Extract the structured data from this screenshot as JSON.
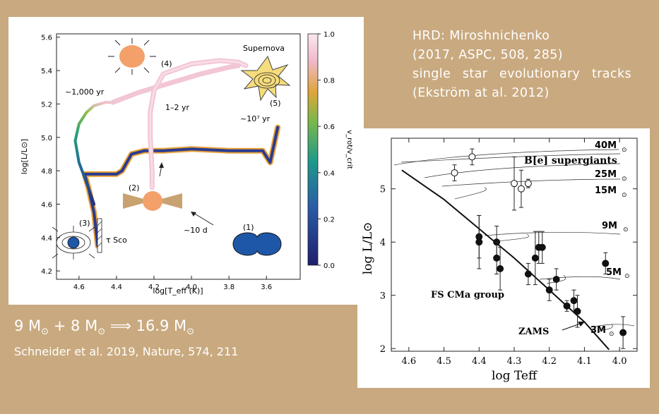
{
  "colors": {
    "background": "#c9a97f",
    "track_outer": "#e8a23a",
    "track_inner": "#2a3b8f",
    "merger_blue": "#1f57a8",
    "star_orange": "#f4a06a",
    "disk_tan": "#c9a271",
    "supernova_yellow": "#f5dc7c"
  },
  "references": {
    "hrd_lines": [
      "HRD: Miroshnichenko",
      "(2017, ASPC, 508, 285)",
      "single star evolutionary tracks",
      "(Ekström at al. 2012)"
    ],
    "equation": {
      "m1": "9 M",
      "m2": "8 M",
      "result": "16.9 M",
      "sun": "⊙",
      "plus": "+",
      "arrow": "⟹"
    },
    "schneider": "Schneider et al. 2019, Nature, 574, 211"
  },
  "chart_data": [
    {
      "type": "line",
      "xlabel": "log[T_eff (K)]",
      "ylabel": "log[L/L⊙]",
      "xlim": [
        4.72,
        3.42
      ],
      "ylim": [
        4.15,
        5.62
      ],
      "x_ticks": [
        "4.6",
        "4.4",
        "4.2",
        "4.0",
        "3.8",
        "3.6"
      ],
      "y_ticks": [
        "4.2",
        "4.4",
        "4.6",
        "4.8",
        "5.0",
        "5.2",
        "5.4",
        "5.6"
      ],
      "colorbar": {
        "label": "v_rot/v_crit",
        "ticks": [
          "0.0",
          "0.2",
          "0.4",
          "0.6",
          "0.8",
          "1.0"
        ]
      },
      "annotations": [
        "(1)",
        "(2)",
        "(3)",
        "(4)",
        "(5)",
        "Supernova",
        "~1,000 yr",
        "1–2 yr",
        "~10⁷ yr",
        "~10 d",
        "τ Sco"
      ],
      "series": [
        {
          "x": [
            4.5,
            4.52,
            4.55,
            4.57,
            4.4,
            4.37,
            4.32,
            4.25,
            4.15,
            4.0,
            3.8,
            3.62,
            3.58,
            3.54
          ],
          "y": [
            4.35,
            4.55,
            4.7,
            4.78,
            4.78,
            4.8,
            4.9,
            4.92,
            4.92,
            4.93,
            4.92,
            4.92,
            4.85,
            5.06
          ]
        },
        {
          "x": [
            4.52,
            4.55,
            4.6,
            4.62,
            4.6,
            4.56,
            4.52,
            4.46,
            4.42
          ],
          "y": [
            4.6,
            4.7,
            4.85,
            4.98,
            5.08,
            5.15,
            5.19,
            5.21,
            5.21
          ]
        },
        {
          "x": [
            4.21,
            4.21,
            4.22,
            4.22,
            4.2,
            4.15,
            4.0,
            3.85,
            3.75,
            3.71
          ],
          "y": [
            4.7,
            4.8,
            5.0,
            5.15,
            5.28,
            5.38,
            5.44,
            5.46,
            5.45,
            5.43
          ]
        },
        {
          "x": [
            4.42,
            4.28,
            4.1,
            3.95,
            3.8,
            3.75
          ],
          "y": [
            5.21,
            5.27,
            5.33,
            5.38,
            5.42,
            5.43
          ]
        }
      ]
    },
    {
      "type": "scatter",
      "xlabel": "log Teff",
      "ylabel": "log L/L⊙",
      "xlim": [
        4.65,
        3.95
      ],
      "ylim": [
        1.95,
        5.95
      ],
      "x_ticks": [
        "4.6",
        "4.5",
        "4.4",
        "4.3",
        "4.2",
        "4.1",
        "4.0"
      ],
      "y_ticks": [
        "2",
        "3",
        "4",
        "5"
      ],
      "annotations": [
        "B[e] supergiants",
        "FS CMa group",
        "ZAMS"
      ],
      "track_labels": [
        "40M",
        "25M",
        "15M",
        "9M",
        "5M",
        "3M"
      ],
      "zams": {
        "x": [
          4.62,
          4.5,
          4.4,
          4.3,
          4.2,
          4.1,
          4.03
        ],
        "y": [
          5.35,
          4.8,
          4.25,
          3.7,
          3.1,
          2.5,
          1.98
        ]
      },
      "series": [
        {
          "name": "FS CMa group",
          "filled": true,
          "x": [
            4.4,
            4.4,
            4.35,
            4.35,
            4.34,
            4.26,
            4.24,
            4.23,
            4.22,
            4.2,
            4.18,
            4.15,
            4.13,
            4.12,
            4.04,
            3.99
          ],
          "y": [
            4.1,
            4.0,
            4.0,
            3.7,
            3.5,
            3.4,
            3.7,
            3.9,
            3.9,
            3.1,
            3.3,
            2.8,
            2.9,
            2.7,
            3.6,
            2.3
          ],
          "yerr": [
            0.4,
            0.5,
            0.3,
            0.3,
            0.4,
            0.2,
            0.5,
            0.3,
            0.3,
            0.2,
            0.2,
            0.1,
            0.2,
            0.3,
            0.2,
            0.3
          ]
        },
        {
          "name": "B[e] supergiants",
          "filled": false,
          "x": [
            4.47,
            4.42,
            4.3,
            4.28,
            4.26
          ],
          "y": [
            5.3,
            5.6,
            5.1,
            5.0,
            5.1
          ],
          "yerr": [
            0.15,
            0.15,
            0.5,
            0.35,
            0.08
          ]
        }
      ]
    }
  ]
}
